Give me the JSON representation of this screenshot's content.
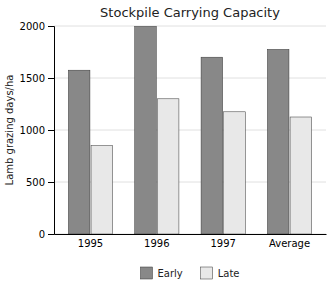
{
  "chart_data": {
    "type": "bar",
    "title": "Stockpile Carrying Capacity",
    "ylabel": "Lamb grazing days/ha",
    "categories": [
      "1995",
      "1996",
      "1997",
      "Average"
    ],
    "series": [
      {
        "name": "Early",
        "color": "#888888",
        "values": [
          1575,
          2000,
          1700,
          1775
        ]
      },
      {
        "name": "Late",
        "color": "#e8e8e8",
        "values": [
          850,
          1300,
          1175,
          1125
        ]
      }
    ],
    "ylim": [
      0,
      2000
    ],
    "yticks": [
      0,
      500,
      1000,
      1500,
      2000
    ],
    "grid": true,
    "legend": "bottom"
  }
}
